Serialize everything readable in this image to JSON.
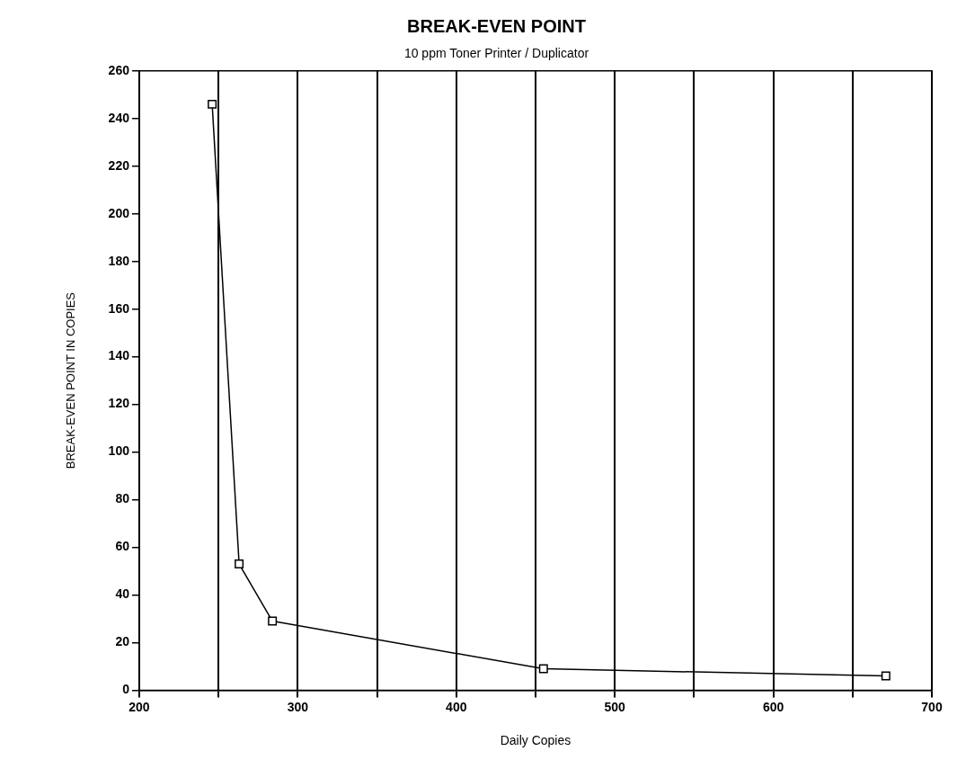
{
  "chart_data": {
    "type": "line",
    "title": "BREAK-EVEN POINT",
    "subtitle": "10 ppm Toner Printer / Duplicator",
    "xlabel": "Daily Copies",
    "ylabel": "BREAK-EVEN POINT IN COPIES",
    "x": [
      246,
      263,
      284,
      455,
      671
    ],
    "series": [
      {
        "color": "#000000",
        "values": [
          246,
          53,
          29,
          9,
          6
        ]
      }
    ],
    "xlim": [
      200,
      700
    ],
    "xticks": [
      200,
      {
        "value": 250,
        "label": null
      },
      300,
      {
        "value": 350,
        "label": null
      },
      400,
      {
        "value": 450,
        "label": null
      },
      500,
      {
        "value": 550,
        "label": null
      },
      600,
      {
        "value": 650,
        "label": null
      },
      700
    ],
    "ylim": [
      0,
      260
    ],
    "yticks": [
      0,
      20,
      40,
      60,
      80,
      100,
      120,
      140,
      160,
      180,
      200,
      220,
      240,
      260
    ],
    "grid": "x",
    "legend": false,
    "marker": "square",
    "line_style": "solid"
  }
}
